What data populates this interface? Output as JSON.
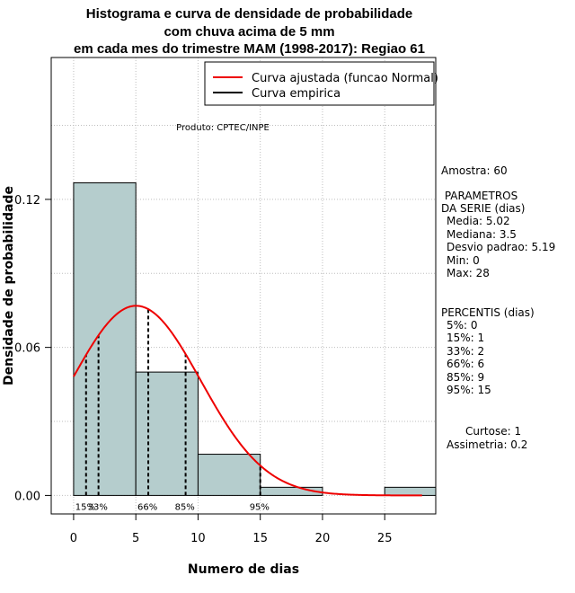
{
  "chart_data": {
    "type": "bar",
    "title": [
      "Histograma e curva de densidade de probabilidade",
      "com chuva acima de 5 mm",
      "em cada mes do trimestre MAM (1998-2017): Regiao 61"
    ],
    "xlabel": "Numero de dias",
    "ylabel": "Densidade de probabilidade",
    "xlim": [
      -1.8,
      29.1
    ],
    "ylim": [
      -0.0075,
      0.1775
    ],
    "x_ticks": [
      0,
      5,
      10,
      15,
      20,
      25
    ],
    "y_ticks": [
      0.0,
      0.06,
      0.12
    ],
    "y_tick_labels": [
      "0.00",
      "0.06",
      "0.12"
    ],
    "bins": [
      {
        "x0": 0,
        "x1": 5,
        "density": 0.1267
      },
      {
        "x0": 5,
        "x1": 10,
        "density": 0.05
      },
      {
        "x0": 10,
        "x1": 15,
        "density": 0.0167
      },
      {
        "x0": 15,
        "x1": 20,
        "density": 0.0033
      },
      {
        "x0": 20,
        "x1": 25,
        "density": 0
      },
      {
        "x0": 25,
        "x1": 30,
        "density": 0.0033
      }
    ],
    "normal_fit": {
      "mean": 5.02,
      "sd": 5.19,
      "x_from": 0,
      "x_to": 28
    },
    "percentile_lines": [
      {
        "label": "15%",
        "x": 1
      },
      {
        "label": "33%",
        "x": 2
      },
      {
        "label": "66%",
        "x": 6
      },
      {
        "label": "85%",
        "x": 9
      },
      {
        "label": "95%",
        "x": 15
      }
    ],
    "legend": [
      {
        "label": "Curva ajustada (funcao Normal)",
        "color": "#ee0000"
      },
      {
        "label": "Curva empirica",
        "color": "#000000"
      }
    ],
    "annotation": "Produto: CPTEC/INPE",
    "colors": {
      "bar_fill": "#b5cdcd",
      "curve": "#ee0000",
      "grid": "#bebebe"
    }
  },
  "stats": {
    "amostra": "Amostra: 60",
    "param_title1": " PARAMETROS",
    "param_title2": "DA SERIE (dias)",
    "media": "Media: 5.02",
    "mediana": "Mediana: 3.5",
    "desvio": "Desvio padrao: 5.19",
    "min": "Min: 0",
    "max": "Max: 28",
    "perc_title": "PERCENTIS (dias)",
    "p5": "5%: 0",
    "p15": "15%: 1",
    "p33": "33%: 2",
    "p66": "66%: 6",
    "p85": "85%: 9",
    "p95": "95%: 15",
    "curtose": "Curtose: 1",
    "assimetria": "Assimetria: 0.2"
  }
}
